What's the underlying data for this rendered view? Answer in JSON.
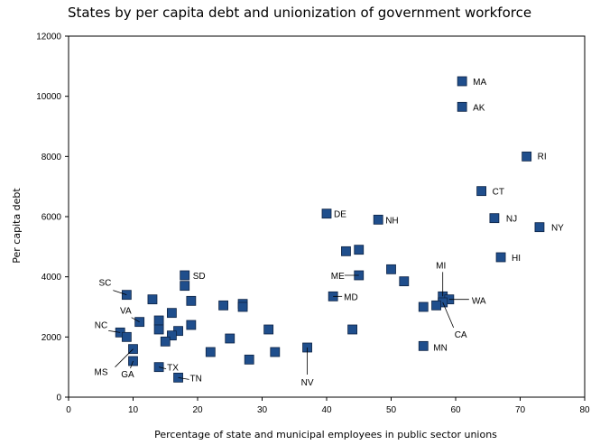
{
  "chart_data": {
    "type": "scatter",
    "title": "States by per capita debt and unionization of government workforce",
    "xlabel": "Percentage of state and municipal employees in public sector unions",
    "ylabel": "Per capita debt",
    "xlim": [
      0,
      80
    ],
    "ylim": [
      0,
      12000
    ],
    "xticks": [
      "0",
      "10",
      "20",
      "30",
      "40",
      "50",
      "60",
      "70",
      "80"
    ],
    "yticks": [
      "0",
      "2000",
      "4000",
      "6000",
      "8000",
      "10000",
      "12000"
    ],
    "grid": false,
    "legend": "none",
    "marker_color": "#1f4e8c",
    "points": [
      {
        "label": "MA",
        "x": 61,
        "y": 10500
      },
      {
        "label": "AK",
        "x": 61,
        "y": 9650
      },
      {
        "label": "RI",
        "x": 71,
        "y": 8000
      },
      {
        "label": "CT",
        "x": 64,
        "y": 6850
      },
      {
        "label": "NJ",
        "x": 66,
        "y": 5950
      },
      {
        "label": "NY",
        "x": 73,
        "y": 5650
      },
      {
        "label": "HI",
        "x": 67,
        "y": 4650
      },
      {
        "label": "DE",
        "x": 40,
        "y": 6100
      },
      {
        "label": "NH",
        "x": 48,
        "y": 5900
      },
      {
        "label": "",
        "x": 43,
        "y": 4850
      },
      {
        "label": "",
        "x": 45,
        "y": 4900
      },
      {
        "label": "ME",
        "x": 45,
        "y": 4050
      },
      {
        "label": "",
        "x": 50,
        "y": 4250
      },
      {
        "label": "",
        "x": 52,
        "y": 3850
      },
      {
        "label": "MD",
        "x": 41,
        "y": 3350
      },
      {
        "label": "",
        "x": 44,
        "y": 2250
      },
      {
        "label": "MI",
        "x": 58,
        "y": 3350
      },
      {
        "label": "WA",
        "x": 59,
        "y": 3250
      },
      {
        "label": "CA",
        "x": 58,
        "y": 3150
      },
      {
        "label": "",
        "x": 57,
        "y": 3050
      },
      {
        "label": "",
        "x": 55,
        "y": 3000
      },
      {
        "label": "MN",
        "x": 55,
        "y": 1700
      },
      {
        "label": "NV",
        "x": 37,
        "y": 1650
      },
      {
        "label": "SD",
        "x": 18,
        "y": 4050
      },
      {
        "label": "",
        "x": 18,
        "y": 3700
      },
      {
        "label": "",
        "x": 13,
        "y": 3250
      },
      {
        "label": "",
        "x": 19,
        "y": 3200
      },
      {
        "label": "",
        "x": 16,
        "y": 2800
      },
      {
        "label": "",
        "x": 14,
        "y": 2550
      },
      {
        "label": "",
        "x": 14,
        "y": 2250
      },
      {
        "label": "",
        "x": 17,
        "y": 2200
      },
      {
        "label": "",
        "x": 19,
        "y": 2400
      },
      {
        "label": "",
        "x": 16,
        "y": 2050
      },
      {
        "label": "",
        "x": 15,
        "y": 1850
      },
      {
        "label": "",
        "x": 24,
        "y": 3050
      },
      {
        "label": "",
        "x": 27,
        "y": 3100
      },
      {
        "label": "",
        "x": 27,
        "y": 3000
      },
      {
        "label": "",
        "x": 31,
        "y": 2250
      },
      {
        "label": "",
        "x": 25,
        "y": 1950
      },
      {
        "label": "",
        "x": 22,
        "y": 1500
      },
      {
        "label": "",
        "x": 28,
        "y": 1250
      },
      {
        "label": "",
        "x": 32,
        "y": 1500
      },
      {
        "label": "SC",
        "x": 9,
        "y": 3400
      },
      {
        "label": "VA",
        "x": 11,
        "y": 2500
      },
      {
        "label": "NC",
        "x": 8,
        "y": 2150
      },
      {
        "label": "",
        "x": 9,
        "y": 2000
      },
      {
        "label": "MS",
        "x": 10,
        "y": 1600
      },
      {
        "label": "GA",
        "x": 10,
        "y": 1200
      },
      {
        "label": "TX",
        "x": 14,
        "y": 1000
      },
      {
        "label": "TN",
        "x": 17,
        "y": 650
      }
    ]
  }
}
